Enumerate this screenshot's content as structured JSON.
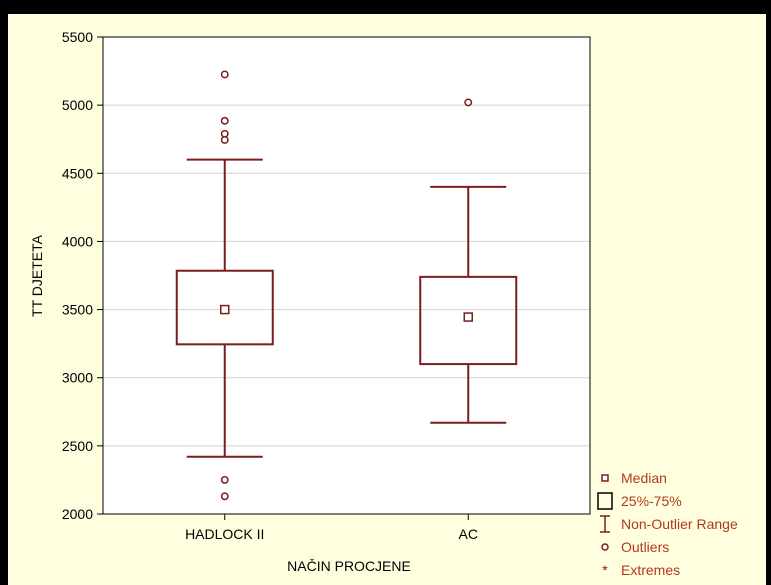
{
  "chart_data": {
    "type": "boxplot",
    "title": "",
    "xlabel": "NAČIN PROCJENE",
    "ylabel": "TT DJETETA",
    "ylim": [
      2000,
      5500
    ],
    "yticks": [
      2000,
      2500,
      3000,
      3500,
      4000,
      4500,
      5000,
      5500
    ],
    "grid": true,
    "legend_position": "bottom-right, outside plot",
    "categories": [
      "HADLOCK II",
      "AC"
    ],
    "boxes": [
      {
        "category": "HADLOCK II",
        "median": 3500,
        "q1": 3245,
        "q3": 3785,
        "whisker_low": 2420,
        "whisker_high": 4600,
        "outliers": [
          5225,
          4885,
          4790,
          4745,
          2250,
          2130
        ]
      },
      {
        "category": "AC",
        "median": 3445,
        "q1": 3100,
        "q3": 3740,
        "whisker_low": 2670,
        "whisker_high": 4400,
        "outliers": [
          5020
        ]
      }
    ],
    "legend": [
      "Median",
      "25%-75%",
      "Non-Outlier Range",
      "Outliers",
      "Extremes"
    ],
    "colors": {
      "series": "#7B1D1D",
      "background": "#FFFFDF",
      "plot_area": "#FFFFFF",
      "frame": "#000000",
      "legend_text": "#B03A1A",
      "grid": "#D4D4D4"
    }
  }
}
